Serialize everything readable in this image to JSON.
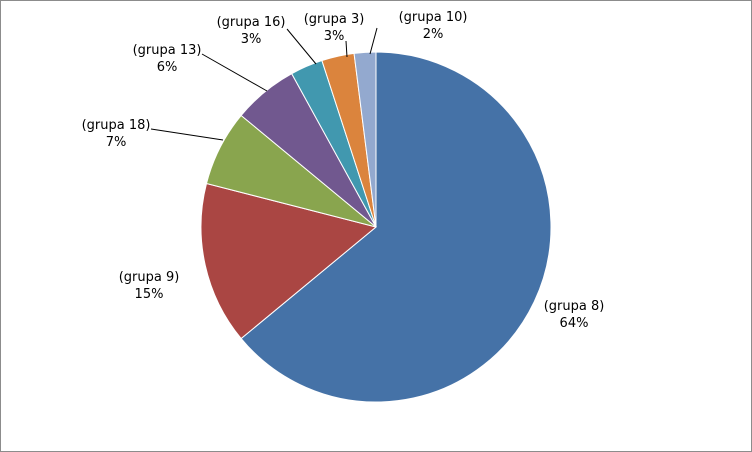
{
  "chart_data": {
    "type": "pie",
    "title": "",
    "start_angle_deg": 0,
    "direction": "clockwise",
    "slices": [
      {
        "label": "(grupa 8)",
        "value": 64,
        "percent_label": "64%",
        "color": "#4572A7"
      },
      {
        "label": "(grupa 9)",
        "value": 15,
        "percent_label": "15%",
        "color": "#AA4643"
      },
      {
        "label": "(grupa 18)",
        "value": 7,
        "percent_label": "7%",
        "color": "#89A54E"
      },
      {
        "label": "(grupa 13)",
        "value": 6,
        "percent_label": "6%",
        "color": "#71588F"
      },
      {
        "label": "(grupa 16)",
        "value": 3,
        "percent_label": "3%",
        "color": "#4198AF"
      },
      {
        "label": "(grupa 3)",
        "value": 3,
        "percent_label": "3%",
        "color": "#DB843D"
      },
      {
        "label": "(grupa 10)",
        "value": 2,
        "percent_label": "2%",
        "color": "#93A9CF"
      }
    ]
  }
}
